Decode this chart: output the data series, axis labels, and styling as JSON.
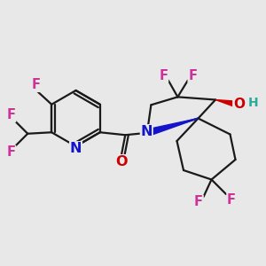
{
  "bg_color": "#e8e8e8",
  "bond_color": "#1a1a1a",
  "bond_width": 1.6,
  "atom_colors": {
    "F": "#cc3399",
    "N": "#1414cc",
    "O": "#cc0000",
    "H": "#2aaa99",
    "C": "#1a1a1a"
  },
  "fig_size": [
    3.0,
    3.0
  ],
  "dpi": 100,
  "xlim": [
    0,
    10
  ],
  "ylim": [
    0,
    10
  ],
  "font_size": 10.5
}
